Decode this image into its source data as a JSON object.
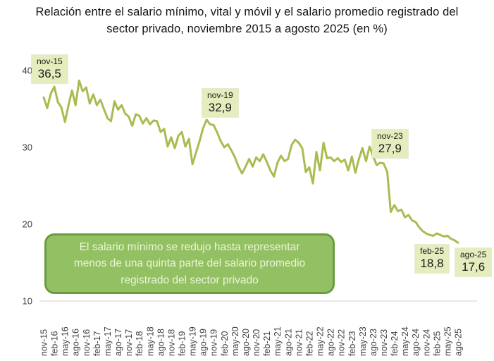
{
  "title": "Relación entre el salario mínimo, vital y móvil y el salario promedio registrado del sector privado, noviembre 2015 a agosto 2025 (en %)",
  "callout": {
    "text": "El salario mínimo se redujo hasta representar menos de una quinta parte del salario promedio registrado del sector privado"
  },
  "annotations": [
    {
      "label": "nov-15",
      "value": "36,5"
    },
    {
      "label": "nov-19",
      "value": "32,9"
    },
    {
      "label": "nov-23",
      "value": "27,9"
    },
    {
      "label": "feb-25",
      "value": "18,8"
    },
    {
      "label": "ago-25",
      "value": "17,6"
    }
  ],
  "colors": {
    "line": "#a9bc50",
    "annotation_bg": "#e5ecbd",
    "callout_bg": "#93c063",
    "callout_border": "#6d9b41",
    "callout_text": "#e9f7d6",
    "axis_text": "#3f3f3f",
    "gridline": "#d9d9d9",
    "title_text": "#141414"
  },
  "chart_data": {
    "type": "line",
    "title": "Relación entre el salario mínimo, vital y móvil y el salario promedio registrado del sector privado, noviembre 2015 a agosto 2025 (en %)",
    "ylabel": "",
    "xlabel": "",
    "ylim": [
      10,
      40
    ],
    "y_ticks": [
      40,
      30,
      20,
      10
    ],
    "grid": "single horizontal gridline at y=10",
    "legend": "none",
    "x_tick_labels": [
      "nov-15",
      "feb-16",
      "may-16",
      "ago-16",
      "nov-16",
      "feb-17",
      "may-17",
      "ago-17",
      "nov-17",
      "feb-18",
      "may-18",
      "ago-18",
      "nov-18",
      "feb-19",
      "may-19",
      "ago-19",
      "nov-19",
      "feb-20",
      "may-20",
      "ago-20",
      "nov-20",
      "feb-21",
      "may-21",
      "ago-21",
      "nov-21",
      "feb-22",
      "may-22",
      "ago-22",
      "nov-22",
      "feb-23",
      "may-23",
      "ago-23",
      "nov-23",
      "feb-24",
      "may-24",
      "ago-24",
      "nov-24",
      "feb-25",
      "may-25",
      "ago-25"
    ],
    "x": [
      "nov-15",
      "dic-15",
      "ene-16",
      "feb-16",
      "mar-16",
      "abr-16",
      "may-16",
      "jun-16",
      "jul-16",
      "ago-16",
      "sep-16",
      "oct-16",
      "nov-16",
      "dic-16",
      "ene-17",
      "feb-17",
      "mar-17",
      "abr-17",
      "may-17",
      "jun-17",
      "jul-17",
      "ago-17",
      "sep-17",
      "oct-17",
      "nov-17",
      "dic-17",
      "ene-18",
      "feb-18",
      "mar-18",
      "abr-18",
      "may-18",
      "jun-18",
      "jul-18",
      "ago-18",
      "sep-18",
      "oct-18",
      "nov-18",
      "dic-18",
      "ene-19",
      "feb-19",
      "mar-19",
      "abr-19",
      "may-19",
      "jun-19",
      "jul-19",
      "ago-19",
      "sep-19",
      "oct-19",
      "nov-19",
      "dic-19",
      "ene-20",
      "feb-20",
      "mar-20",
      "abr-20",
      "may-20",
      "jun-20",
      "jul-20",
      "ago-20",
      "sep-20",
      "oct-20",
      "nov-20",
      "dic-20",
      "ene-21",
      "feb-21",
      "mar-21",
      "abr-21",
      "may-21",
      "jun-21",
      "jul-21",
      "ago-21",
      "sep-21",
      "oct-21",
      "nov-21",
      "dic-21",
      "ene-22",
      "feb-22",
      "mar-22",
      "abr-22",
      "may-22",
      "jun-22",
      "jul-22",
      "ago-22",
      "sep-22",
      "oct-22",
      "nov-22",
      "dic-22",
      "ene-23",
      "feb-23",
      "mar-23",
      "abr-23",
      "may-23",
      "jun-23",
      "jul-23",
      "ago-23",
      "sep-23",
      "oct-23",
      "nov-23",
      "dic-23",
      "ene-24",
      "feb-24",
      "mar-24",
      "abr-24",
      "may-24",
      "jun-24",
      "jul-24",
      "ago-24",
      "sep-24",
      "oct-24",
      "nov-24",
      "dic-24",
      "ene-25",
      "feb-25",
      "mar-25",
      "abr-25",
      "may-25",
      "jun-25",
      "jul-25",
      "ago-25"
    ],
    "values": [
      36.5,
      35.1,
      37.0,
      37.9,
      35.9,
      35.2,
      33.3,
      35.5,
      37.4,
      35.5,
      38.7,
      37.3,
      37.8,
      35.7,
      36.9,
      35.5,
      36.2,
      35.0,
      33.8,
      33.4,
      36.0,
      34.9,
      35.5,
      34.4,
      34.0,
      32.8,
      34.3,
      34.1,
      33.1,
      33.8,
      33.0,
      33.5,
      33.4,
      32.0,
      32.4,
      30.1,
      31.3,
      29.9,
      31.5,
      32.0,
      30.1,
      31.1,
      27.8,
      29.3,
      30.8,
      32.5,
      33.6,
      33.0,
      32.9,
      31.9,
      30.8,
      30.0,
      30.4,
      29.6,
      28.7,
      27.5,
      26.6,
      27.5,
      28.5,
      27.5,
      28.7,
      28.2,
      29.1,
      28.1,
      27.0,
      26.2,
      28.0,
      28.9,
      28.2,
      28.5,
      30.3,
      31.0,
      30.6,
      29.9,
      26.8,
      27.4,
      25.3,
      29.4,
      27.0,
      30.6,
      28.6,
      28.7,
      28.2,
      28.6,
      28.1,
      28.4,
      27.0,
      28.8,
      26.7,
      28.5,
      29.9,
      28.2,
      30.1,
      28.9,
      27.7,
      28.0,
      27.9,
      26.8,
      21.6,
      22.5,
      21.7,
      21.9,
      20.9,
      21.2,
      20.5,
      20.3,
      19.6,
      19.1,
      18.8,
      18.6,
      18.5,
      18.8,
      18.6,
      18.4,
      18.5,
      18.1,
      17.9,
      17.6
    ],
    "annotated_points": [
      {
        "x": "nov-15",
        "y": 36.5
      },
      {
        "x": "nov-19",
        "y": 32.9
      },
      {
        "x": "nov-23",
        "y": 27.9
      },
      {
        "x": "feb-25",
        "y": 18.8
      },
      {
        "x": "ago-25",
        "y": 17.6
      }
    ]
  }
}
